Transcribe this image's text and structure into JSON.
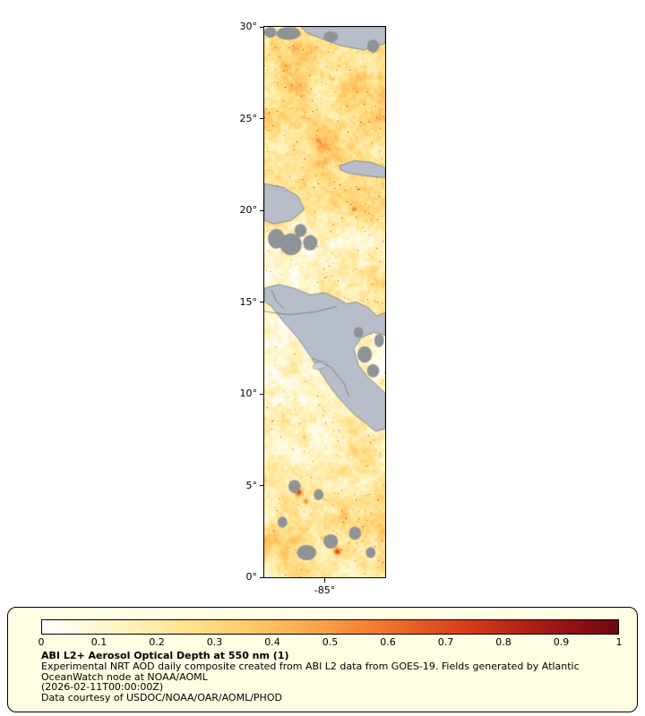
{
  "figure": {
    "map": {
      "lat_ticks": [
        {
          "label": "30°",
          "deg": 30
        },
        {
          "label": "25°",
          "deg": 25
        },
        {
          "label": "20°",
          "deg": 20
        },
        {
          "label": "15°",
          "deg": 15
        },
        {
          "label": "10°",
          "deg": 10
        },
        {
          "label": "5°",
          "deg": 5
        },
        {
          "label": "0°",
          "deg": 0
        }
      ],
      "lon_ticks": [
        {
          "label": "-85°",
          "deg": -85,
          "frac": 0.5
        }
      ]
    }
  },
  "legend": {
    "colorbar": {
      "stops": [
        "#ffffff",
        "#fff8d1",
        "#ffeba4",
        "#ffd97b",
        "#ffbe5c",
        "#fb9b43",
        "#f0722e",
        "#dd4a1e",
        "#c02b16",
        "#991414",
        "#6e0712"
      ],
      "ticks": [
        "0",
        "0.1",
        "0.2",
        "0.3",
        "0.4",
        "0.5",
        "0.6",
        "0.7",
        "0.8",
        "0.9",
        "1"
      ],
      "range": [
        0,
        1
      ]
    },
    "title": "ABI L2+ Aerosol Optical Depth at 550 nm (1)",
    "description": "Experimental NRT AOD daily composite created from ABI L2 data from GOES-19. Fields generated by Atlantic OceanWatch node at NOAA/AOML",
    "timestamp": "(2026-02-11T00:00:00Z)",
    "courtesy": "Data courtesy of USDOC/NOAA/OAR/AOML/PHOD"
  },
  "colors": {
    "panel_bg": "#FFFDE2",
    "land": "#b7bec9",
    "lake": "#c7cdd7",
    "cloud": "#8f9398",
    "land_outline": "#6b7077",
    "political_border": "#55585e"
  },
  "chart_data": {
    "type": "heatmap",
    "title": "ABI L2+ Aerosol Optical Depth at 550 nm (1)",
    "variable": "Aerosol Optical Depth at 550 nm",
    "value_range": [
      0,
      1
    ],
    "colorbar_ticks": [
      0,
      0.1,
      0.2,
      0.3,
      0.4,
      0.5,
      0.6,
      0.7,
      0.8,
      0.9,
      1
    ],
    "lat_axis_deg": [
      30,
      25,
      20,
      15,
      10,
      5,
      0
    ],
    "lon_tick_deg": -85,
    "notes": "Satellite AOD composite strip map; gray areas are land/no-data"
  }
}
